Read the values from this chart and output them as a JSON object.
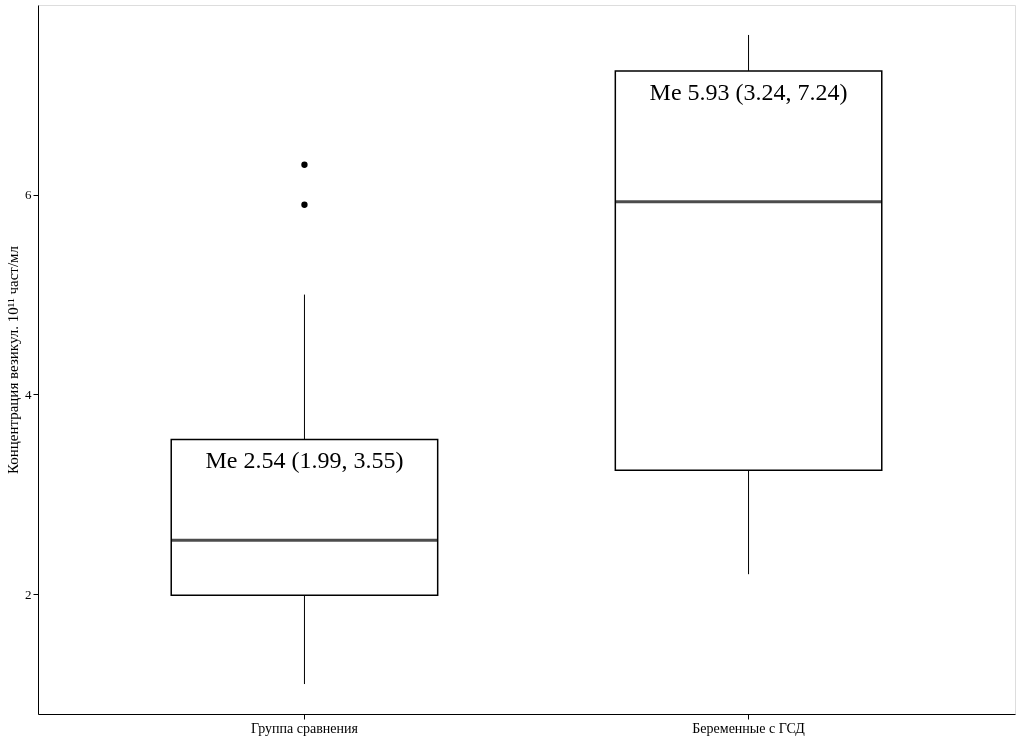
{
  "chart_data": {
    "type": "box",
    "ylabel": "Концентрация везикул. 10¹¹ част/мл",
    "categories": [
      "Группа сравнения",
      "Беременные с ГСД"
    ],
    "boxes": [
      {
        "low": 1.1,
        "q1": 1.99,
        "median": 2.54,
        "q3": 3.55,
        "high": 5.0,
        "outliers": [
          5.9,
          6.3
        ]
      },
      {
        "low": 2.2,
        "q1": 3.24,
        "median": 5.93,
        "q3": 7.24,
        "high": 7.6
      }
    ],
    "color": "#ffffff",
    "ylim": [
      0.8,
      7.9
    ],
    "yticks": [
      2,
      4,
      6
    ],
    "grid": false,
    "annotations": [
      "Me 2.54 (1.99, 3.55)",
      "Me 5.93 (3.24, 7.24)"
    ]
  }
}
